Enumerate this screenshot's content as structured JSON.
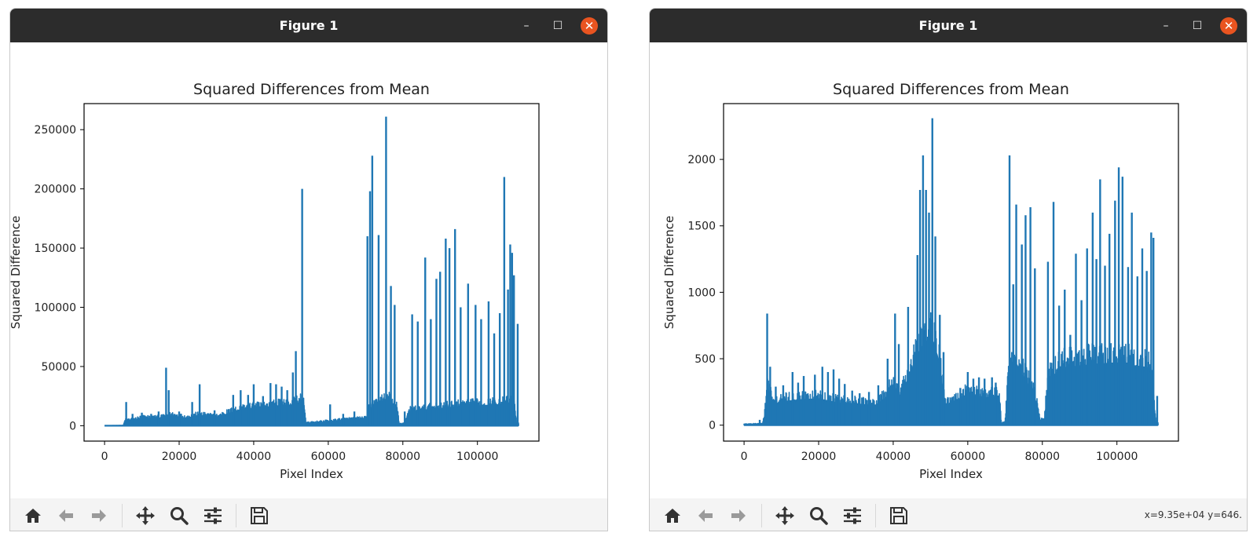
{
  "windows": [
    {
      "title": "Figure 1",
      "minimize_glyph": "–",
      "maximize_glyph": "☐",
      "close_glyph": "✕",
      "toolbar": {
        "icons": [
          "home-icon",
          "back-arrow-icon",
          "forward-arrow-icon",
          "pan-move-icon",
          "zoom-magnifier-icon",
          "configure-subplots-icon",
          "save-floppy-icon"
        ],
        "coords_text": ""
      }
    },
    {
      "title": "Figure 1",
      "minimize_glyph": "–",
      "maximize_glyph": "☐",
      "close_glyph": "✕",
      "toolbar": {
        "icons": [
          "home-icon",
          "back-arrow-icon",
          "forward-arrow-icon",
          "pan-move-icon",
          "zoom-magnifier-icon",
          "configure-subplots-icon",
          "save-floppy-icon"
        ],
        "coords_text": "x=9.35e+04 y=646."
      }
    }
  ],
  "chart_data": [
    {
      "type": "line",
      "title": "Squared Differences from Mean",
      "xlabel": "Pixel Index",
      "ylabel": "Squared Difference",
      "xlim": [
        -5500,
        116500
      ],
      "ylim": [
        -13000,
        272000
      ],
      "xticks": [
        0,
        20000,
        40000,
        60000,
        80000,
        100000
      ],
      "yticks": [
        0,
        50000,
        100000,
        150000,
        200000,
        250000
      ],
      "color": "#1f77b4",
      "grid": false,
      "x_range": [
        0,
        111000
      ],
      "baseline": [
        [
          0,
          0
        ],
        [
          5000,
          300
        ],
        [
          5500,
          6000
        ],
        [
          8000,
          7000
        ],
        [
          10000,
          9000
        ],
        [
          15000,
          9000
        ],
        [
          18000,
          12000
        ],
        [
          22000,
          9000
        ],
        [
          25000,
          12000
        ],
        [
          30000,
          10000
        ],
        [
          33000,
          14000
        ],
        [
          36000,
          18000
        ],
        [
          40000,
          20000
        ],
        [
          45000,
          22000
        ],
        [
          50000,
          24000
        ],
        [
          53500,
          28000
        ],
        [
          54000,
          3000
        ],
        [
          60000,
          5000
        ],
        [
          65000,
          7000
        ],
        [
          70000,
          8000
        ],
        [
          71000,
          20000
        ],
        [
          76000,
          30000
        ],
        [
          78500,
          22000
        ],
        [
          79000,
          2000
        ],
        [
          80500,
          2500
        ],
        [
          81500,
          16000
        ],
        [
          85000,
          18000
        ],
        [
          90000,
          20000
        ],
        [
          95000,
          22000
        ],
        [
          100000,
          23000
        ],
        [
          105000,
          24000
        ],
        [
          110000,
          26000
        ],
        [
          110500,
          1000
        ],
        [
          111000,
          3000
        ]
      ],
      "peaks": [
        [
          5800,
          20000
        ],
        [
          7500,
          10000
        ],
        [
          10000,
          11000
        ],
        [
          12500,
          10000
        ],
        [
          14500,
          12000
        ],
        [
          16500,
          49000
        ],
        [
          17200,
          30000
        ],
        [
          20000,
          12000
        ],
        [
          23500,
          20000
        ],
        [
          25500,
          35000
        ],
        [
          29500,
          13000
        ],
        [
          34500,
          26000
        ],
        [
          36500,
          30000
        ],
        [
          38500,
          26000
        ],
        [
          40000,
          35000
        ],
        [
          42500,
          25000
        ],
        [
          44500,
          36000
        ],
        [
          46000,
          35000
        ],
        [
          47500,
          33000
        ],
        [
          49000,
          30000
        ],
        [
          50500,
          45000
        ],
        [
          51300,
          63000
        ],
        [
          53000,
          200000
        ],
        [
          60500,
          18000
        ],
        [
          64000,
          10000
        ],
        [
          67000,
          12000
        ],
        [
          70500,
          160000
        ],
        [
          71200,
          198000
        ],
        [
          71800,
          228000
        ],
        [
          73500,
          161000
        ],
        [
          75500,
          261000
        ],
        [
          76800,
          118000
        ],
        [
          77800,
          102000
        ],
        [
          80500,
          12000
        ],
        [
          82500,
          94000
        ],
        [
          84000,
          88000
        ],
        [
          86000,
          142000
        ],
        [
          87500,
          90000
        ],
        [
          89000,
          124000
        ],
        [
          90000,
          130000
        ],
        [
          91500,
          158000
        ],
        [
          92500,
          150000
        ],
        [
          94000,
          166000
        ],
        [
          95500,
          100000
        ],
        [
          97500,
          120000
        ],
        [
          99500,
          102000
        ],
        [
          101000,
          90000
        ],
        [
          103000,
          105000
        ],
        [
          104500,
          78000
        ],
        [
          106000,
          95000
        ],
        [
          107200,
          210000
        ],
        [
          108200,
          115000
        ],
        [
          108800,
          153000
        ],
        [
          109300,
          146000
        ],
        [
          109800,
          127000
        ],
        [
          110800,
          86000
        ]
      ]
    },
    {
      "type": "line",
      "title": "Squared Differences from Mean",
      "xlabel": "Pixel Index",
      "ylabel": "Squared Difference",
      "xlim": [
        -5500,
        116500
      ],
      "ylim": [
        -120,
        2420
      ],
      "xticks": [
        0,
        20000,
        40000,
        60000,
        80000,
        100000
      ],
      "yticks": [
        0,
        500,
        1000,
        1500,
        2000
      ],
      "color": "#1f77b4",
      "grid": false,
      "x_range": [
        0,
        111000
      ],
      "baseline": [
        [
          0,
          10
        ],
        [
          5000,
          15
        ],
        [
          5500,
          120
        ],
        [
          6200,
          400
        ],
        [
          8000,
          210
        ],
        [
          10000,
          240
        ],
        [
          15000,
          260
        ],
        [
          20000,
          270
        ],
        [
          25000,
          230
        ],
        [
          30000,
          220
        ],
        [
          35000,
          200
        ],
        [
          38000,
          280
        ],
        [
          40000,
          420
        ],
        [
          42000,
          300
        ],
        [
          45000,
          560
        ],
        [
          47000,
          750
        ],
        [
          50000,
          900
        ],
        [
          52000,
          700
        ],
        [
          54000,
          200
        ],
        [
          56000,
          230
        ],
        [
          60000,
          320
        ],
        [
          65000,
          280
        ],
        [
          68500,
          300
        ],
        [
          69000,
          20
        ],
        [
          70000,
          30
        ],
        [
          71000,
          560
        ],
        [
          75000,
          500
        ],
        [
          78000,
          300
        ],
        [
          79500,
          50
        ],
        [
          80500,
          60
        ],
        [
          81500,
          450
        ],
        [
          85000,
          580
        ],
        [
          90000,
          600
        ],
        [
          95000,
          620
        ],
        [
          100000,
          630
        ],
        [
          105000,
          600
        ],
        [
          109000,
          580
        ],
        [
          110500,
          30
        ],
        [
          111000,
          20
        ]
      ],
      "peaks": [
        [
          4200,
          40
        ],
        [
          6200,
          840
        ],
        [
          7000,
          440
        ],
        [
          8500,
          290
        ],
        [
          10500,
          300
        ],
        [
          13000,
          400
        ],
        [
          14500,
          320
        ],
        [
          16000,
          370
        ],
        [
          19000,
          380
        ],
        [
          21000,
          440
        ],
        [
          22500,
          400
        ],
        [
          24000,
          420
        ],
        [
          25500,
          350
        ],
        [
          27000,
          310
        ],
        [
          29000,
          260
        ],
        [
          31000,
          240
        ],
        [
          33500,
          250
        ],
        [
          36000,
          300
        ],
        [
          38500,
          500
        ],
        [
          40500,
          840
        ],
        [
          41500,
          610
        ],
        [
          44000,
          890
        ],
        [
          46500,
          1280
        ],
        [
          47200,
          1770
        ],
        [
          48000,
          2030
        ],
        [
          48800,
          1770
        ],
        [
          49600,
          1600
        ],
        [
          50500,
          2310
        ],
        [
          51300,
          1420
        ],
        [
          52500,
          830
        ],
        [
          53500,
          550
        ],
        [
          58000,
          280
        ],
        [
          60000,
          400
        ],
        [
          61500,
          350
        ],
        [
          63000,
          360
        ],
        [
          64500,
          350
        ],
        [
          66500,
          360
        ],
        [
          67500,
          320
        ],
        [
          71200,
          2030
        ],
        [
          72200,
          1060
        ],
        [
          73000,
          1660
        ],
        [
          74500,
          1360
        ],
        [
          75500,
          1580
        ],
        [
          76800,
          1640
        ],
        [
          78000,
          1180
        ],
        [
          81500,
          1230
        ],
        [
          83000,
          1680
        ],
        [
          84500,
          900
        ],
        [
          86000,
          1020
        ],
        [
          87500,
          680
        ],
        [
          89000,
          1290
        ],
        [
          90500,
          940
        ],
        [
          92000,
          1330
        ],
        [
          93500,
          1600
        ],
        [
          94500,
          1250
        ],
        [
          95500,
          1850
        ],
        [
          96800,
          1200
        ],
        [
          98000,
          1440
        ],
        [
          99500,
          1690
        ],
        [
          100500,
          1940
        ],
        [
          101500,
          1870
        ],
        [
          103000,
          1190
        ],
        [
          104000,
          1600
        ],
        [
          105500,
          1120
        ],
        [
          106800,
          1330
        ],
        [
          108000,
          1160
        ],
        [
          109200,
          1450
        ],
        [
          109800,
          1410
        ],
        [
          110800,
          220
        ]
      ]
    }
  ]
}
